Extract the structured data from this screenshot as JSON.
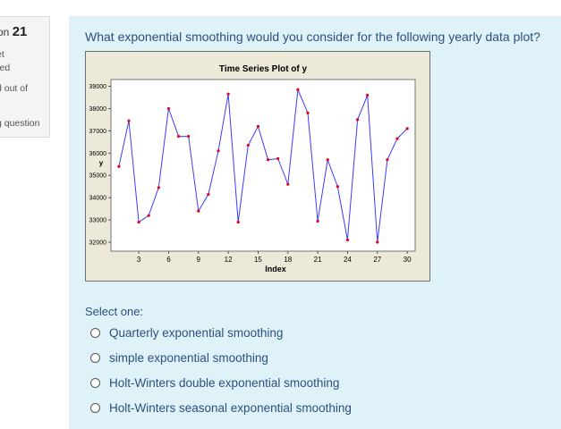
{
  "info": {
    "question_prefix": "on",
    "question_number": "21",
    "status_line1": "et",
    "status_line2": "red",
    "status_line3": "d out of",
    "flag_text": "g question"
  },
  "question": {
    "text": "What exponential smoothing would you consider for the following  yearly data plot?",
    "select_prompt": "Select one:",
    "options": [
      {
        "label": "Quarterly exponential smoothing"
      },
      {
        "label": "simple exponential smoothing"
      },
      {
        "label": "Holt-Winters double exponential smoothing"
      },
      {
        "label": "Holt-Winters seasonal exponential smoothing"
      }
    ]
  },
  "chart_data": {
    "type": "line",
    "title": "Time Series Plot of y",
    "xlabel": "Index",
    "ylabel": "y",
    "x_ticks": [
      3,
      6,
      9,
      12,
      15,
      18,
      21,
      24,
      27,
      30
    ],
    "y_ticks": [
      32000,
      33000,
      34000,
      35000,
      36000,
      37000,
      38000,
      39000
    ],
    "xlim": [
      0.2,
      30.8
    ],
    "ylim": [
      31600,
      39300
    ],
    "grid": false,
    "line_color": "#3b3bff",
    "marker_color": "#e8001c",
    "x": [
      1,
      2,
      3,
      4,
      5,
      6,
      7,
      8,
      9,
      10,
      11,
      12,
      13,
      14,
      15,
      16,
      17,
      18,
      19,
      20,
      21,
      22,
      23,
      24,
      25,
      26,
      27,
      28,
      29,
      30
    ],
    "values": [
      35400,
      37450,
      32900,
      33200,
      34450,
      38000,
      36750,
      36750,
      33400,
      34150,
      36100,
      38650,
      32900,
      36350,
      37200,
      35700,
      35750,
      34600,
      38850,
      37800,
      32950,
      35700,
      34500,
      32100,
      37500,
      38600,
      32000,
      35700,
      36650,
      37100
    ]
  }
}
